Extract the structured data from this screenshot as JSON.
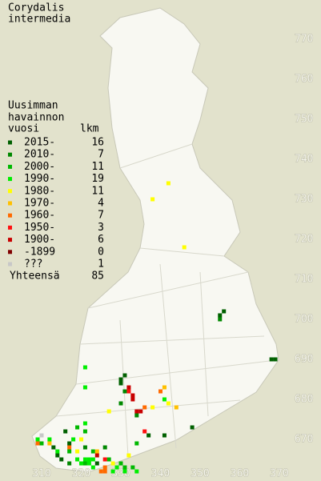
{
  "chart_data": {
    "type": "scatter",
    "title": [
      "Corydalis",
      "intermedia"
    ],
    "legend_title": [
      "Uusimman",
      "havainnon",
      "vuosi"
    ],
    "count_header": "lkm",
    "xlim": [
      299.5,
      380.5
    ],
    "ylim": [
      659.6,
      779.8
    ],
    "xticks": [
      310,
      320,
      330,
      340,
      350,
      360,
      370
    ],
    "yticks": [
      670,
      680,
      690,
      700,
      710,
      720,
      730,
      740,
      750,
      760,
      770
    ],
    "series": [
      {
        "name": "2015-",
        "count": 16,
        "color": "#006000",
        "x": [
          355,
          356,
          368,
          369,
          330,
          331,
          330,
          337,
          341,
          348,
          316,
          314,
          315,
          313,
          324,
          317
        ],
        "y": [
          701,
          702,
          690,
          690,
          685,
          686,
          684,
          671,
          671,
          673,
          672,
          666,
          665,
          668,
          664,
          669
        ]
      },
      {
        "name": "2010-",
        "count": 7,
        "color": "#008800",
        "x": [
          355,
          331,
          334,
          330,
          321,
          317,
          326
        ],
        "y": [
          700,
          682,
          676,
          679,
          668,
          664,
          668
        ]
      },
      {
        "name": "2000-",
        "count": 11,
        "color": "#00b800",
        "x": [
          319,
          321,
          323,
          317,
          334,
          333,
          331,
          330,
          327,
          321,
          310
        ],
        "y": [
          673,
          672,
          667,
          667,
          669,
          663,
          663,
          664,
          665,
          664,
          669
        ]
      },
      {
        "name": "1990-",
        "count": 19,
        "color": "#00ee00",
        "x": [
          321,
          321,
          309,
          312,
          318,
          321,
          314,
          321,
          322,
          323,
          322,
          319,
          320,
          323,
          328,
          331,
          334,
          329,
          341
        ],
        "y": [
          688,
          683,
          670,
          670,
          670,
          674,
          667,
          665,
          665,
          665,
          664,
          665,
          664,
          663,
          662,
          662,
          662,
          663,
          680
        ]
      },
      {
        "name": "1980-",
        "count": 11,
        "color": "#ffff00",
        "x": [
          338,
          342,
          346,
          341,
          342,
          338,
          327,
          320,
          319,
          332,
          328
        ],
        "y": [
          730,
          734,
          718,
          683,
          679,
          678,
          677,
          670,
          667,
          666,
          664
        ]
      },
      {
        "name": "1970-",
        "count": 4,
        "color": "#ffc000",
        "x": [
          341,
          344,
          324,
          312
        ],
        "y": [
          683,
          678,
          667,
          669
        ]
      },
      {
        "name": "1960-",
        "count": 7,
        "color": "#ff6a00",
        "x": [
          325,
          326,
          326,
          340,
          336,
          317,
          309
        ],
        "y": [
          662,
          662,
          663,
          682,
          678,
          668,
          669
        ]
      },
      {
        "name": "1950-",
        "count": 3,
        "color": "#ff1010",
        "x": [
          332,
          326,
          336
        ],
        "y": [
          682,
          665,
          672
        ]
      },
      {
        "name": "1900-",
        "count": 6,
        "color": "#c80000",
        "x": [
          332,
          333,
          333,
          334,
          335,
          324
        ],
        "y": [
          683,
          681,
          680,
          677,
          677,
          666
        ]
      },
      {
        "name": "-1899",
        "count": 0,
        "color": "#800000",
        "x": [],
        "y": []
      },
      {
        "name": "???",
        "count": 1,
        "color": "#c8c8c8",
        "x": [
          310
        ],
        "y": [
          671
        ]
      }
    ],
    "total": {
      "label": "Yhteensä",
      "value": 85
    }
  }
}
